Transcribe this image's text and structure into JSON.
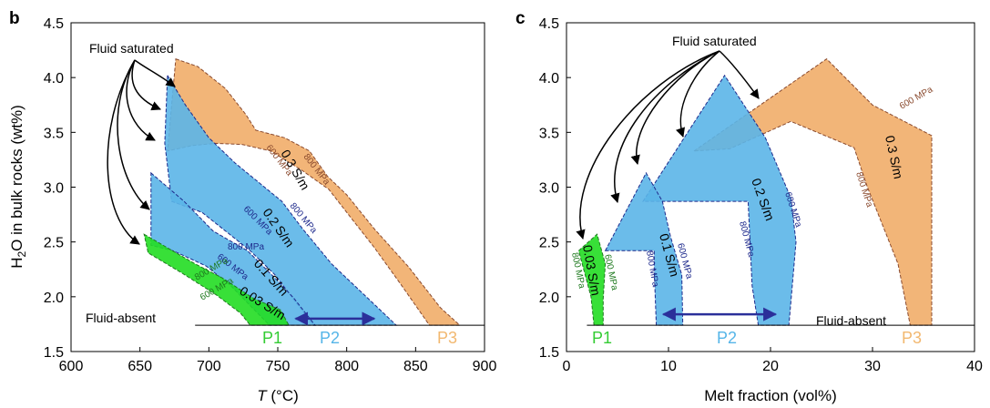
{
  "chart_data": [
    {
      "panel": "b",
      "type": "area",
      "xlabel_italic": "T",
      "xlabel_unit": "(°C)",
      "ylabel_prefix": "H",
      "ylabel_sub": "2",
      "ylabel_suffix": "O in bulk rocks (wt%)",
      "xlim": [
        600,
        900
      ],
      "ylim": [
        1.5,
        4.5
      ],
      "xticks": [
        "600",
        "650",
        "700",
        "750",
        "800",
        "850",
        "900"
      ],
      "yticks": [
        "1.5",
        "2.0",
        "2.5",
        "3.0",
        "3.5",
        "4.0",
        "4.5"
      ],
      "annotations": {
        "fluid_saturated": "Fluid saturated",
        "fluid_absent": "Fluid-absent"
      },
      "regions": [
        {
          "label": "P3",
          "color": "#F0A860",
          "conductivity": "0.3 S/m",
          "polygon": [
            [
              676,
              4.17
            ],
            [
              692,
              4.1
            ],
            [
              712,
              3.9
            ],
            [
              727,
              3.66
            ],
            [
              734,
              3.52
            ],
            [
              755,
              3.45
            ],
            [
              773,
              3.33
            ],
            [
              786,
              3.1
            ],
            [
              800,
              2.93
            ],
            [
              820,
              2.62
            ],
            [
              845,
              2.27
            ],
            [
              868,
              1.9
            ],
            [
              882,
              1.74
            ],
            [
              860,
              1.74
            ],
            [
              840,
              2.1
            ],
            [
              820,
              2.45
            ],
            [
              800,
              2.77
            ],
            [
              787,
              2.98
            ],
            [
              768,
              3.15
            ],
            [
              745,
              3.33
            ],
            [
              724,
              3.39
            ],
            [
              705,
              3.4
            ],
            [
              688,
              3.38
            ],
            [
              670,
              3.33
            ]
          ]
        },
        {
          "label": "P2",
          "color": "#5BB5E8",
          "conductivity": "0.2 S/m",
          "polygon": [
            [
              670,
              4.02
            ],
            [
              683,
              3.75
            ],
            [
              700,
              3.45
            ],
            [
              719,
              3.22
            ],
            [
              753,
              2.87
            ],
            [
              768,
              2.62
            ],
            [
              789,
              2.3
            ],
            [
              836,
              1.74
            ],
            [
              776,
              1.74
            ],
            [
              760,
              2.0
            ],
            [
              748,
              2.2
            ],
            [
              730,
              2.42
            ],
            [
              712,
              2.6
            ],
            [
              695,
              2.77
            ],
            [
              673,
              2.87
            ],
            [
              668,
              3.4
            ]
          ]
        },
        {
          "label": "P2",
          "color": "#5BB5E8",
          "conductivity": "0.1 S/m",
          "polygon": [
            [
              658,
              3.13
            ],
            [
              682,
              2.87
            ],
            [
              703,
              2.6
            ],
            [
              728,
              2.42
            ],
            [
              752,
              2.12
            ],
            [
              762,
              1.98
            ],
            [
              777,
              1.74
            ],
            [
              744,
              1.74
            ],
            [
              733,
              1.88
            ],
            [
              716,
              2.1
            ],
            [
              698,
              2.28
            ],
            [
              674,
              2.42
            ],
            [
              658,
              2.47
            ]
          ]
        },
        {
          "label": "P1",
          "color": "#22DD22",
          "conductivity": "0.03 S/m",
          "polygon": [
            [
              653,
              2.57
            ],
            [
              690,
              2.3
            ],
            [
              710,
              2.17
            ],
            [
              733,
              1.98
            ],
            [
              752,
              1.88
            ],
            [
              758,
              1.74
            ],
            [
              730,
              1.74
            ],
            [
              723,
              1.85
            ],
            [
              705,
              2.02
            ],
            [
              680,
              2.22
            ],
            [
              656,
              2.4
            ]
          ]
        }
      ],
      "arrow": {
        "from": 763,
        "to": 820,
        "y": 1.8
      },
      "pressure_labels": [
        "800 MPa",
        "600 MPa"
      ],
      "legend_labels": [
        "P1",
        "P2",
        "P3"
      ]
    },
    {
      "panel": "c",
      "type": "area",
      "xlabel": "Melt fraction (vol%)",
      "ylabel": "",
      "xlim": [
        0,
        40
      ],
      "ylim": [
        1.5,
        4.5
      ],
      "xticks": [
        "0",
        "10",
        "20",
        "30",
        "40"
      ],
      "yticks": [
        "1.5",
        "2.0",
        "2.5",
        "3.0",
        "3.5",
        "4.0",
        "4.5"
      ],
      "annotations": {
        "fluid_saturated": "Fluid saturated",
        "fluid_absent": "Fluid-absent"
      },
      "regions": [
        {
          "label": "P3",
          "color": "#F0A860",
          "conductivity": "0.3 S/m",
          "polygon": [
            [
              12.5,
              3.33
            ],
            [
              25.5,
              4.17
            ],
            [
              30,
              3.75
            ],
            [
              35.8,
              3.47
            ],
            [
              35.8,
              1.74
            ],
            [
              33.7,
              1.74
            ],
            [
              32.5,
              2.3
            ],
            [
              29.5,
              3.0
            ],
            [
              28.2,
              3.36
            ],
            [
              22,
              3.6
            ],
            [
              16,
              3.35
            ]
          ]
        },
        {
          "label": "P2",
          "color": "#5BB5E8",
          "conductivity": "0.2 S/m",
          "polygon": [
            [
              7.5,
              2.87
            ],
            [
              15.5,
              4.02
            ],
            [
              19.5,
              3.45
            ],
            [
              22,
              2.9
            ],
            [
              22.5,
              2.5
            ],
            [
              21.8,
              1.74
            ],
            [
              18.8,
              1.74
            ],
            [
              18.2,
              2.1
            ],
            [
              17.8,
              2.87
            ]
          ]
        },
        {
          "label": "P2",
          "color": "#5BB5E8",
          "conductivity": "0.1 S/m",
          "polygon": [
            [
              3.8,
              2.42
            ],
            [
              7.8,
              3.13
            ],
            [
              9.4,
              2.87
            ],
            [
              10.2,
              2.55
            ],
            [
              11.3,
              2.2
            ],
            [
              11.4,
              1.74
            ],
            [
              8.8,
              1.74
            ],
            [
              8.6,
              2.25
            ],
            [
              8.6,
              2.42
            ]
          ]
        },
        {
          "label": "P1",
          "color": "#22DD22",
          "conductivity": "0.03 S/m",
          "polygon": [
            [
              1.2,
              2.42
            ],
            [
              3.0,
              2.57
            ],
            [
              3.8,
              2.3
            ],
            [
              3.6,
              1.98
            ],
            [
              3.6,
              1.74
            ],
            [
              2.7,
              1.74
            ],
            [
              2.4,
              2.0
            ]
          ]
        }
      ],
      "arrow": {
        "from": 9.5,
        "to": 20.5,
        "y": 1.84
      },
      "pressure_labels": [
        "600 MPa",
        "800 MPa"
      ],
      "legend_labels": [
        "P1",
        "P2",
        "P3"
      ]
    }
  ],
  "colors": {
    "p1": "#22DD22",
    "p2": "#5BB5E8",
    "p3": "#F0A860",
    "p1_label": "#33CC33",
    "p2_label": "#55B5E8",
    "p3_label": "#F2B870",
    "arrow": "#2B2F9A",
    "press_blue": "#1E2A8C",
    "press_brown": "#8A4A2E",
    "press_green": "#1F7A1F"
  }
}
